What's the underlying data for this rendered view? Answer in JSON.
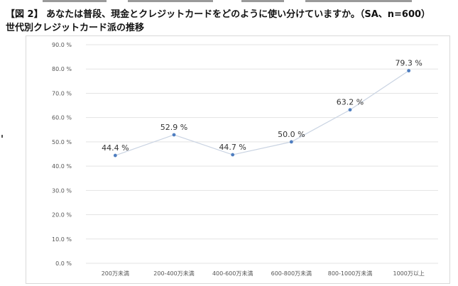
{
  "heading": "【図 2】 あなたは普段、現金とクレジットカードをどのように使い分けていますか。（SA、n=600）",
  "subheading": "世代別クレジットカード派の推移",
  "chart_data": {
    "type": "line",
    "title": "世代別クレジットカード派の推移",
    "categories": [
      "200万未満",
      "200-400万未満",
      "400-600万未満",
      "600-800万未満",
      "800-1000万未満",
      "1000万以上"
    ],
    "series": [
      {
        "name": "クレジットカード派",
        "values": [
          44.4,
          52.9,
          44.7,
          50.0,
          63.2,
          79.3
        ],
        "labels": [
          "44.4 %",
          "52.9 %",
          "44.7 %",
          "50.0 %",
          "63.2 %",
          "79.3 %"
        ]
      }
    ],
    "ylim": [
      0,
      90
    ],
    "yticks": [
      0,
      10,
      20,
      30,
      40,
      50,
      60,
      70,
      80,
      90
    ],
    "ytick_labels": [
      "0.0 %",
      "10.0 %",
      "20.0 %",
      "30.0 %",
      "40.0 %",
      "50.0 %",
      "60.0 %",
      "70.0 %",
      "80.0 %",
      "90.0 %"
    ],
    "xlabel": "",
    "ylabel": "",
    "grid": true,
    "legend": "none",
    "colors": {
      "line": "#c9d3e2",
      "marker": "#4f7ec0",
      "grid": "#e3e3e3",
      "axis_text": "#555555",
      "label_text": "#333333"
    }
  }
}
